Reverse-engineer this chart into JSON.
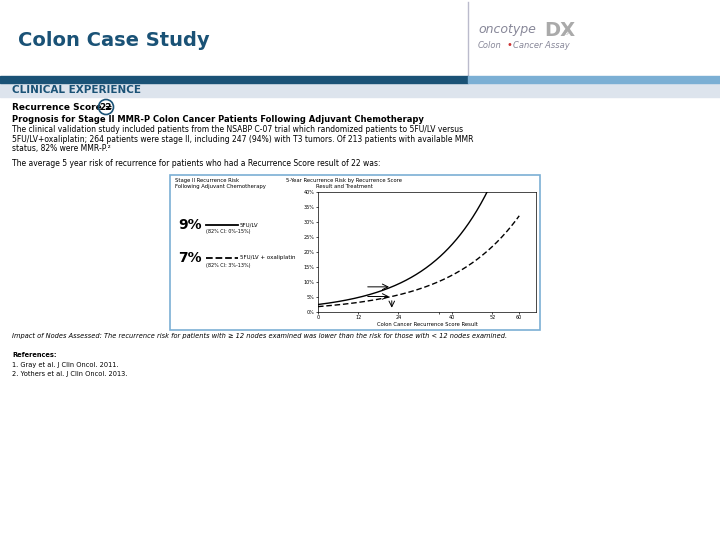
{
  "title": "Colon Case Study",
  "title_color": "#1a5276",
  "title_fontsize": 14,
  "header_bar_color1": "#1a5276",
  "header_bar_color2": "#7bafd4",
  "section_label": "CLINICAL EXPERIENCE",
  "section_label_color": "#1a5276",
  "section_label_fontsize": 7.5,
  "recurrence_score_text": "Recurrence Score = ",
  "recurrence_score_value": "22",
  "recurrence_score_fontsize": 6.5,
  "bold_heading": "Prognosis for Stage II MMR-P Colon Cancer Patients Following Adjuvant Chemotherapy",
  "bold_heading_fontsize": 6.0,
  "body_text1_line1": "The clinical validation study included patients from the NSABP C-07 trial which randomized patients to 5FU/LV versus",
  "body_text1_line2": "5FU/LV+oxaliplatin; 264 patients were stage II, including 247 (94%) with T3 tumors. Of 213 patients with available MMR",
  "body_text1_line3": "status, 82% were MMR-P.²",
  "body_text1_fontsize": 5.5,
  "body_text2": "The average 5 year risk of recurrence for patients who had a Recurrence Score result of 22 was:",
  "body_text2_fontsize": 5.5,
  "footnote": "Impact of Nodes Assessed: The recurrence risk for patients with ≥ 12 nodes examined was lower than the risk for those with < 12 nodes examined.",
  "footnote_fontsize": 4.8,
  "references_header": "References:",
  "references": [
    "1. Gray et al. J Clin Oncol. 2011.",
    "2. Yothers et al. J Clin Oncol. 2013."
  ],
  "references_fontsize": 4.8,
  "chart_left_text_9pct": "9%",
  "chart_left_text_7pct": "7%",
  "chart_label_solid": "5FU/LV",
  "chart_label_dashed": "5FU/LV + oxaliplatin",
  "chart_ci_solid": "(82% CI: 0%-15%)",
  "chart_ci_dashed": "(82% CI: 3%-13%)",
  "chart_title_left": "Stage II Recurrence Risk\nFollowing Adjuvant Chemotherapy",
  "chart_title_right": "5-Year Recurrence Risk by Recurrence Score\nResult and Treatment",
  "chart_xlabel": "Colon Cancer Recurrence Score Result",
  "chart_border_color": "#7bafd4",
  "background_color": "#ffffff",
  "divider_color": "#7bafd4",
  "logo_oncotype_color": "#888899",
  "logo_dx_color": "#aaaaaa",
  "logo_colon_color": "#888899",
  "logo_bullet_color": "#cc3333",
  "logo_assay_color": "#888899"
}
